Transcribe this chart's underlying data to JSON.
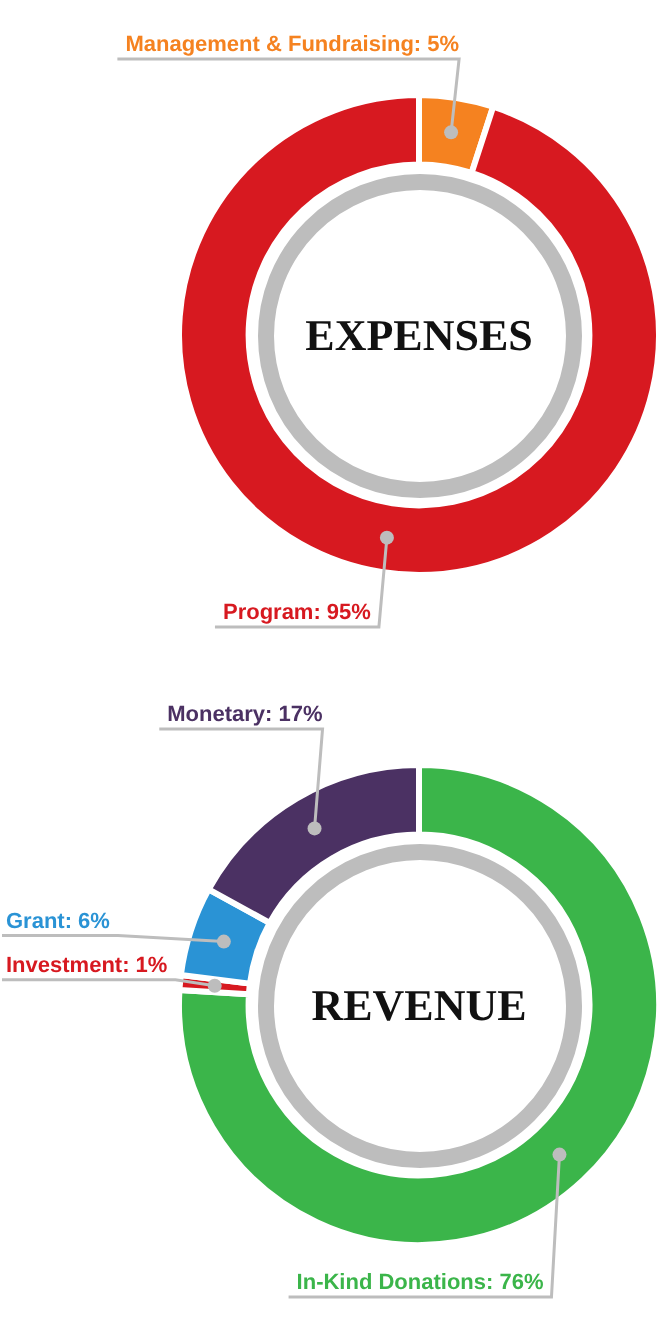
{
  "chart_data": [
    {
      "type": "donut",
      "title": "EXPENSES",
      "categories": [
        "Management & Fundraising",
        "Program"
      ],
      "values": [
        5,
        95
      ],
      "colors": [
        "#f58220",
        "#d71920"
      ],
      "value_labels": [
        "5%",
        "95%"
      ]
    },
    {
      "type": "donut",
      "title": "REVENUE",
      "categories": [
        "In-Kind Donations",
        "Investment",
        "Grant",
        "Monetary"
      ],
      "values": [
        76,
        1,
        6,
        17
      ],
      "colors": [
        "#3bb54a",
        "#d71920",
        "#2a93d5",
        "#4b3163"
      ],
      "value_labels": [
        "76%",
        "1%",
        "6%",
        "17%"
      ]
    }
  ]
}
